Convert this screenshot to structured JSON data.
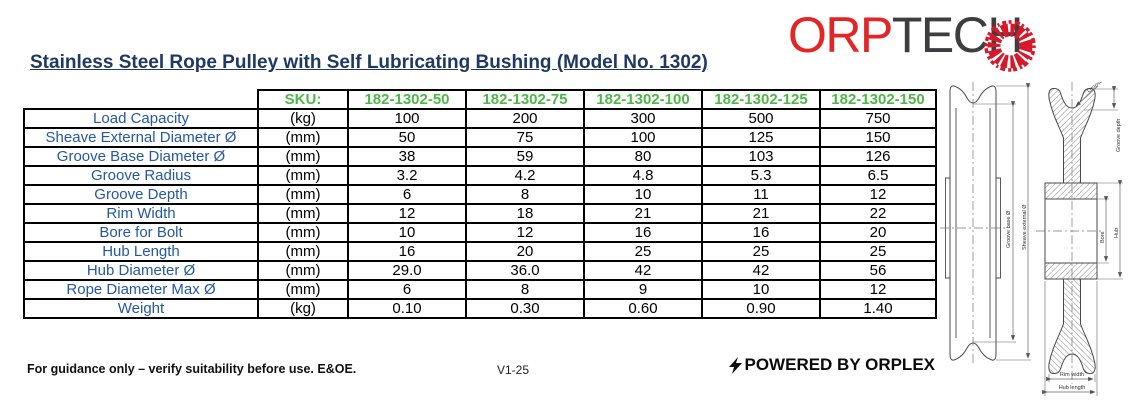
{
  "logo": {
    "text_red": "ORP",
    "text_dark": "TECH",
    "color_red": "#D7182A",
    "color_dark": "#3E3D40"
  },
  "title": "Stainless Steel Rope Pulley with Self Lubricating Bushing (Model No. 1302)",
  "colors": {
    "title_navy": "#1F3864",
    "label_blue": "#2457A5",
    "sku_green": "#4DB848",
    "table_border": "#000000"
  },
  "table": {
    "sku_label": "SKU:",
    "skus": [
      "182-1302-50",
      "182-1302-75",
      "182-1302-100",
      "182-1302-125",
      "182-1302-150"
    ],
    "rows": [
      {
        "label": "Load Capacity",
        "unit": "(kg)",
        "values": [
          "100",
          "200",
          "300",
          "500",
          "750"
        ]
      },
      {
        "label": "Sheave External Diameter Ø",
        "unit": "(mm)",
        "values": [
          "50",
          "75",
          "100",
          "125",
          "150"
        ]
      },
      {
        "label": "Groove Base Diameter Ø",
        "unit": "(mm)",
        "values": [
          "38",
          "59",
          "80",
          "103",
          "126"
        ]
      },
      {
        "label": "Groove Radius",
        "unit": "(mm)",
        "values": [
          "3.2",
          "4.2",
          "4.8",
          "5.3",
          "6.5"
        ]
      },
      {
        "label": "Groove Depth",
        "unit": "(mm)",
        "values": [
          "6",
          "8",
          "10",
          "11",
          "12"
        ]
      },
      {
        "label": "Rim Width",
        "unit": "(mm)",
        "values": [
          "12",
          "18",
          "21",
          "21",
          "22"
        ]
      },
      {
        "label": "Bore for Bolt",
        "unit": "(mm)",
        "values": [
          "10",
          "12",
          "16",
          "16",
          "20"
        ]
      },
      {
        "label": "Hub Length",
        "unit": "(mm)",
        "values": [
          "16",
          "20",
          "25",
          "25",
          "25"
        ]
      },
      {
        "label": "Hub Diameter Ø",
        "unit": "(mm)",
        "values": [
          "29.0",
          "36.0",
          "42",
          "42",
          "56"
        ]
      },
      {
        "label": "Rope Diameter Max Ø",
        "unit": "(mm)",
        "values": [
          "6",
          "8",
          "9",
          "10",
          "12"
        ]
      },
      {
        "label": "Weight",
        "unit": "(kg)",
        "values": [
          "0.10",
          "0.30",
          "0.60",
          "0.90",
          "1.40"
        ]
      }
    ]
  },
  "footer": {
    "disclaimer": "For guidance only – verify suitability before use. E&OE.",
    "version": "V1-25",
    "powered_by": "POWERED BY ORPLEX"
  },
  "drawings": {
    "front_view_labels": {
      "groove_base": "Groove base Ø",
      "sheave_external": "Sheave external Ø"
    },
    "section_view_labels": {
      "groove_radius": "Groove radius",
      "groove_depth": "Groove depth",
      "bore": "Bore",
      "hub": "Hub",
      "rim_width": "Rim width",
      "hub_length": "Hub length"
    }
  }
}
